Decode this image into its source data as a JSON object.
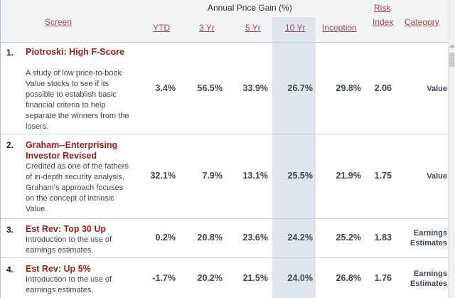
{
  "header": {
    "annual_price_gain": "Annual Price Gain (%)",
    "screen": "Screen",
    "ytd": "YTD",
    "yr3": "3 Yr",
    "yr5": "5 Yr",
    "yr10": "10 Yr",
    "inception": "Inception",
    "risk_line1": "Risk",
    "risk_line2": "Index",
    "category": "Category"
  },
  "rows": [
    {
      "rank": "1.",
      "title": "Piotroski: High F-Score",
      "description": "A study of low price-to-book Value stocks to see if its possible to establish basic financial criteria to help separate the winners from the losers.",
      "ytd": "3.4%",
      "yr3": "56.5%",
      "yr5": "33.9%",
      "yr10": "26.7%",
      "inception": "29.8%",
      "risk": "2.06",
      "category": "Value"
    },
    {
      "rank": "2.",
      "title": "Graham--Enterprising Investor Revised",
      "description": "Credited as one of the fathers of in-depth security analysis, Graham's approach focuses on the concept of intrinsic Value.",
      "ytd": "32.1%",
      "yr3": "7.9%",
      "yr5": "13.1%",
      "yr10": "25.5%",
      "inception": "21.9%",
      "risk": "1.75",
      "category": "Value"
    },
    {
      "rank": "3.",
      "title": "Est Rev: Top 30 Up",
      "description": "Introduction to the use of earnings estimates.",
      "ytd": "0.2%",
      "yr3": "20.8%",
      "yr5": "23.6%",
      "yr10": "24.2%",
      "inception": "25.2%",
      "risk": "1.83",
      "category": "Earnings Estimates"
    },
    {
      "rank": "4.",
      "title": "Est Rev: Up 5%",
      "description": "Introduction to the use of earnings estimates.",
      "ytd": "-1.7%",
      "yr3": "20.2%",
      "yr5": "21.5%",
      "yr10": "24.0%",
      "inception": "26.8%",
      "risk": "1.76",
      "category": "Earnings Estimates"
    }
  ]
}
